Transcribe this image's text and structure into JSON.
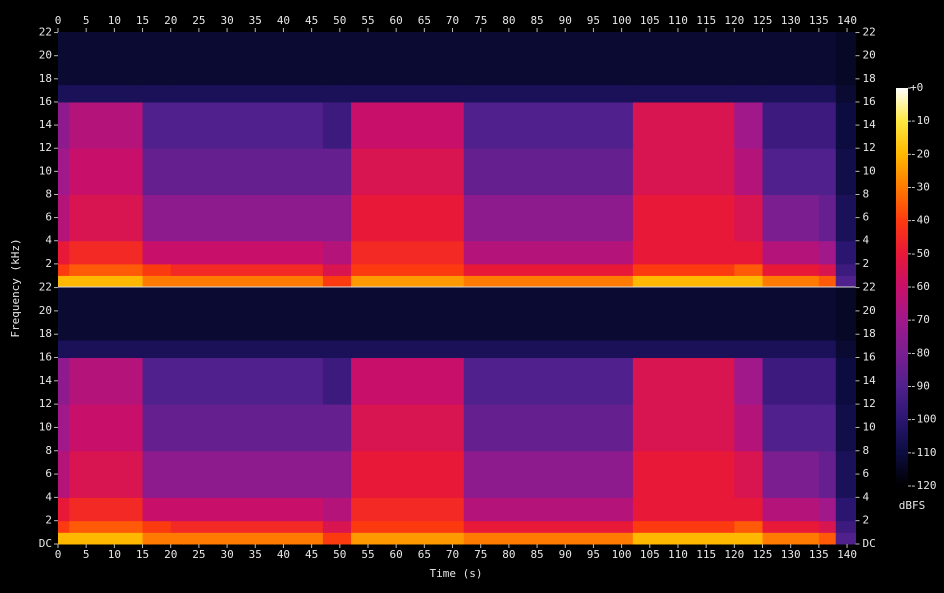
{
  "chart_data": {
    "type": "spectrogram",
    "xlabel": "Time (s)",
    "ylabel": "Frequency (kHz)",
    "zlabel": "dBFS",
    "xlim": [
      0,
      141.5
    ],
    "xticks": [
      0,
      5,
      10,
      15,
      20,
      25,
      30,
      35,
      40,
      45,
      50,
      55,
      60,
      65,
      70,
      75,
      80,
      85,
      90,
      95,
      100,
      105,
      110,
      115,
      120,
      125,
      130,
      135,
      140
    ],
    "ylim": [
      0,
      22.05
    ],
    "zlim": [
      -120,
      0
    ],
    "zticks": [
      {
        "value": 0,
        "label": "+0"
      },
      -10,
      -20,
      -30,
      -40,
      -50,
      -60,
      -70,
      -80,
      -90,
      -100,
      -110,
      -120
    ],
    "colors": [
      "#000000",
      "#0c0c40",
      "#2a1670",
      "#50208c",
      "#7a1e90",
      "#a0188a",
      "#c8106a",
      "#e81838",
      "#fc3a10",
      "#ff7a00",
      "#ffb800",
      "#ffe840",
      "#ffffff"
    ],
    "time_edges": [
      0,
      2,
      15,
      20,
      47,
      52,
      72,
      102,
      120,
      125,
      135,
      138,
      141.5
    ],
    "freq_edges": [
      0,
      1,
      2,
      4,
      8,
      12,
      16,
      17.5,
      22.05
    ],
    "channels": [
      {
        "yticks": [
          2,
          4,
          6,
          8,
          10,
          12,
          14,
          16,
          18,
          20,
          22
        ],
        "values": [
          [
            -20,
            -20,
            -30,
            -30,
            -40,
            -25,
            -30,
            -20,
            -20,
            -30,
            -35,
            -90
          ],
          [
            -40,
            -35,
            -40,
            -45,
            -55,
            -40,
            -50,
            -40,
            -35,
            -50,
            -55,
            -95
          ],
          [
            -50,
            -45,
            -60,
            -60,
            -65,
            -45,
            -65,
            -50,
            -50,
            -65,
            -70,
            -100
          ],
          [
            -65,
            -55,
            -75,
            -75,
            -75,
            -50,
            -75,
            -50,
            -55,
            -80,
            -85,
            -105
          ],
          [
            -70,
            -60,
            -85,
            -85,
            -85,
            -55,
            -85,
            -55,
            -65,
            -90,
            -90,
            -108
          ],
          [
            -75,
            -65,
            -90,
            -90,
            -95,
            -60,
            -90,
            -55,
            -70,
            -95,
            -95,
            -110
          ],
          [
            -105,
            -105,
            -105,
            -105,
            -105,
            -105,
            -105,
            -105,
            -105,
            -105,
            -105,
            -112
          ],
          [
            -112,
            -112,
            -112,
            -112,
            -112,
            -112,
            -112,
            -112,
            -112,
            -112,
            -112,
            -114
          ]
        ]
      },
      {
        "yticks": [
          {
            "value": 0,
            "label": "DC"
          },
          2,
          4,
          6,
          8,
          10,
          12,
          14,
          16,
          18,
          20,
          22
        ],
        "values": [
          [
            -20,
            -20,
            -30,
            -30,
            -40,
            -25,
            -30,
            -20,
            -20,
            -30,
            -35,
            -90
          ],
          [
            -40,
            -35,
            -40,
            -45,
            -55,
            -40,
            -50,
            -40,
            -35,
            -50,
            -55,
            -95
          ],
          [
            -50,
            -45,
            -60,
            -60,
            -65,
            -45,
            -65,
            -50,
            -50,
            -65,
            -70,
            -100
          ],
          [
            -65,
            -55,
            -75,
            -75,
            -75,
            -50,
            -75,
            -50,
            -55,
            -80,
            -85,
            -105
          ],
          [
            -70,
            -60,
            -85,
            -85,
            -85,
            -55,
            -85,
            -55,
            -65,
            -90,
            -90,
            -108
          ],
          [
            -75,
            -65,
            -90,
            -90,
            -95,
            -60,
            -90,
            -55,
            -70,
            -95,
            -95,
            -110
          ],
          [
            -105,
            -105,
            -105,
            -105,
            -105,
            -105,
            -105,
            -105,
            -105,
            -105,
            -105,
            -112
          ],
          [
            -112,
            -112,
            -112,
            -112,
            -112,
            -112,
            -112,
            -112,
            -112,
            -112,
            -112,
            -114
          ]
        ]
      }
    ]
  }
}
